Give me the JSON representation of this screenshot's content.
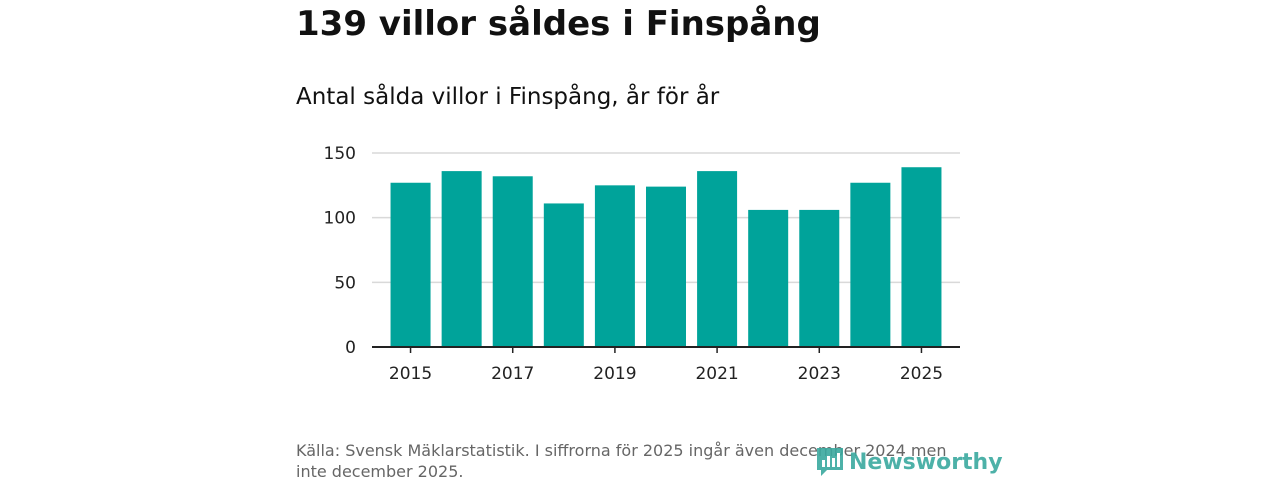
{
  "headline": "139 villor såldes i Finspång",
  "source_note": "Källa: Svensk Mäklarstatistik. I siffrorna för 2025 ingår även december 2024 men inte december 2025.",
  "logo": {
    "text": "Newsworthy",
    "color": "#3aa99f"
  },
  "chart_data": {
    "type": "bar",
    "title": "Antal sålda villor i Finspång, år för år",
    "xlabel": "",
    "ylabel": "",
    "categories": [
      "2015",
      "2016",
      "2017",
      "2018",
      "2019",
      "2020",
      "2021",
      "2022",
      "2023",
      "2024",
      "2025"
    ],
    "values": [
      127,
      136,
      132,
      111,
      125,
      124,
      136,
      106,
      106,
      127,
      139
    ],
    "x_tick_labels": [
      "2015",
      "2017",
      "2019",
      "2021",
      "2023",
      "2025"
    ],
    "y_ticks": [
      0,
      50,
      100,
      150
    ],
    "y_tick_labels": [
      "0",
      "50",
      "100",
      "150"
    ],
    "ylim": [
      0,
      150
    ],
    "grid": true,
    "bar_color": "#00a39a",
    "grid_color": "#d9d9d9",
    "axis_color": "#222222"
  }
}
